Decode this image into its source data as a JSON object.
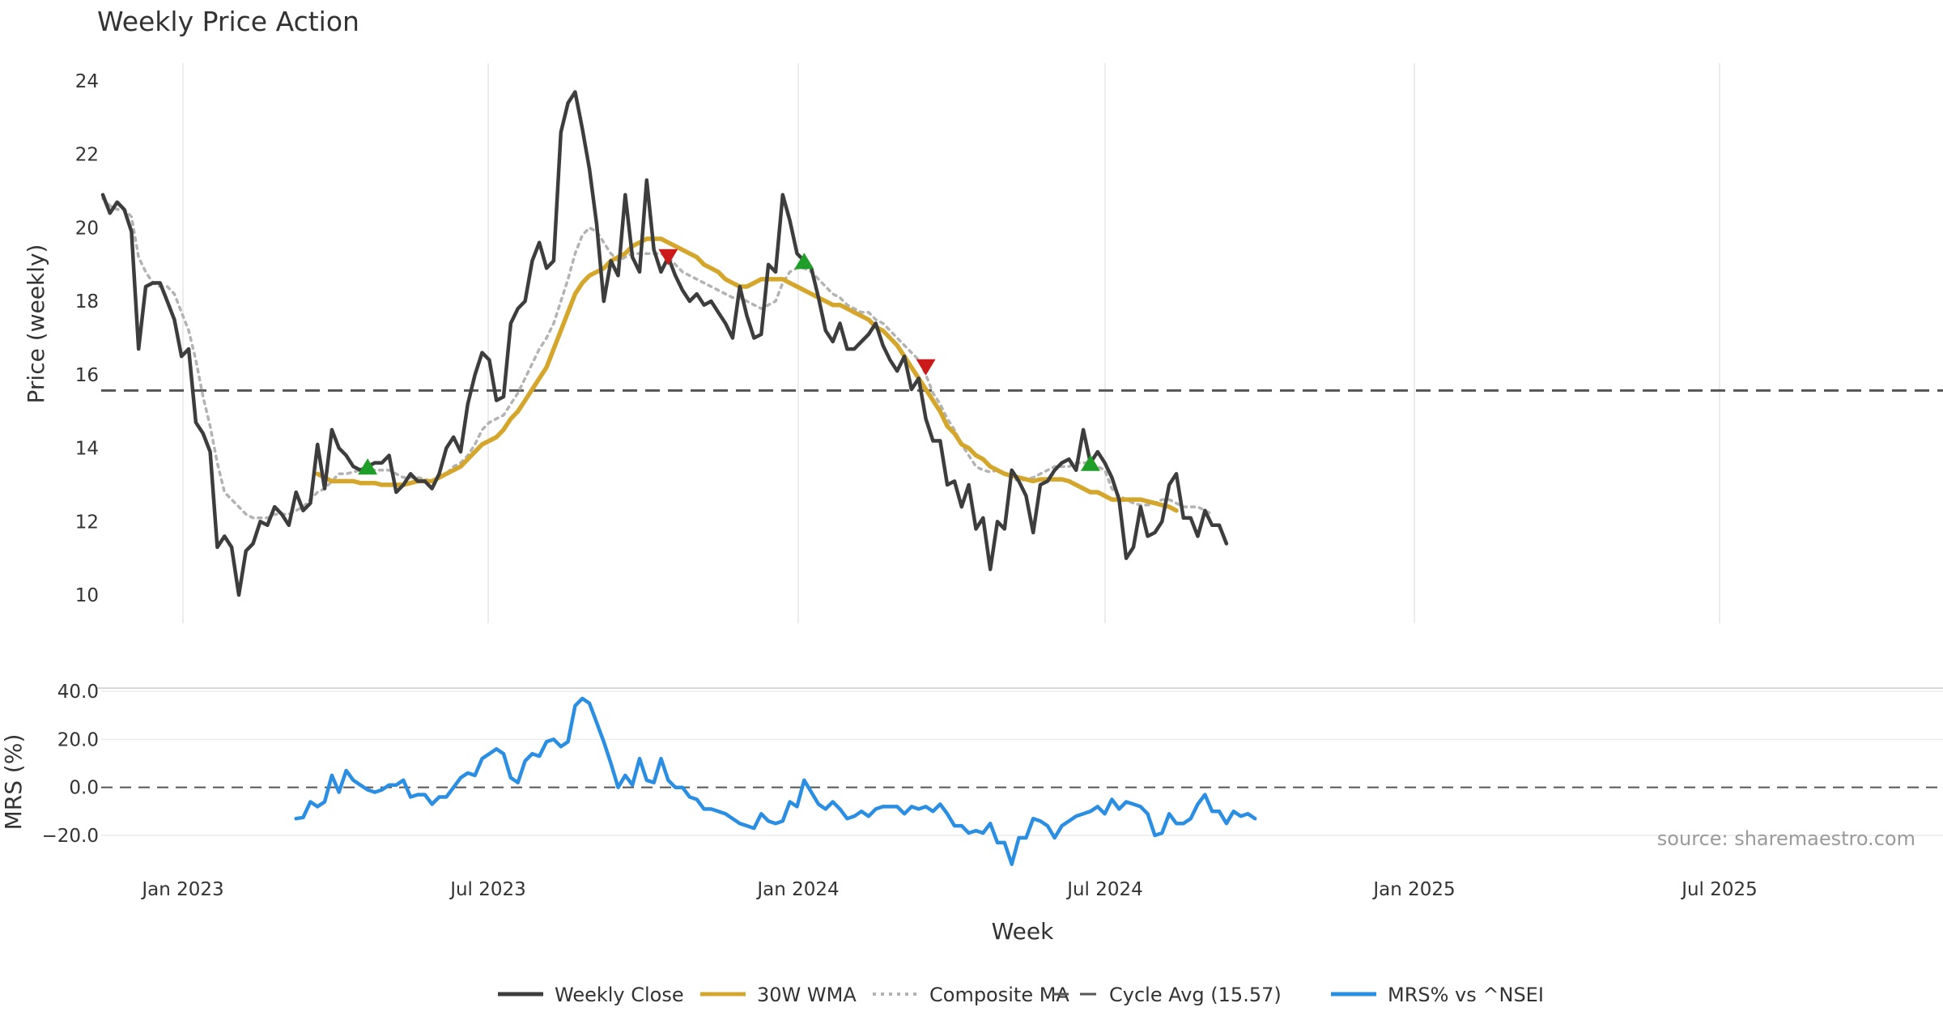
{
  "chart_data": {
    "type": "line",
    "title": "Weekly Price Action",
    "xlabel": "Week",
    "x_ticks": [
      "Jan 2023",
      "Jul 2023",
      "Jan 2024",
      "Jul 2024",
      "Jan 2025",
      "Jul 2025"
    ],
    "x_start": "2022-10-31",
    "price_panel": {
      "ylabel": "Price (weekly)",
      "ylim": [
        9.3,
        24.5
      ],
      "yticks": [
        "10",
        "12",
        "14",
        "16",
        "18",
        "20",
        "22",
        "24"
      ],
      "cycle_avg": 15.57,
      "series": [
        {
          "name": "Weekly Close",
          "color": "#3d3d3d",
          "start_index": 0,
          "values": [
            20.9,
            20.4,
            20.7,
            20.5,
            19.9,
            16.7,
            18.4,
            18.5,
            18.5,
            18.0,
            17.5,
            16.5,
            16.7,
            14.7,
            14.4,
            13.9,
            11.3,
            11.6,
            11.3,
            10.0,
            11.2,
            11.4,
            12.0,
            11.9,
            12.4,
            12.2,
            11.9,
            12.8,
            12.3,
            12.5,
            14.1,
            12.9,
            14.5,
            14.0,
            13.8,
            13.5,
            13.4,
            13.5,
            13.6,
            13.6,
            13.8,
            12.8,
            13.0,
            13.3,
            13.1,
            13.1,
            12.9,
            13.3,
            14.0,
            14.3,
            13.9,
            15.2,
            16.0,
            16.6,
            16.4,
            15.3,
            15.4,
            17.4,
            17.8,
            18.0,
            19.1,
            19.6,
            18.9,
            19.1,
            22.6,
            23.4,
            23.7,
            22.7,
            21.6,
            20.1,
            18.0,
            19.1,
            18.7,
            20.9,
            19.2,
            18.8,
            21.3,
            19.4,
            18.8,
            19.2,
            18.7,
            18.3,
            18.0,
            18.2,
            17.9,
            18.0,
            17.7,
            17.4,
            17.0,
            18.4,
            17.6,
            17.0,
            17.1,
            19.0,
            18.8,
            20.9,
            20.2,
            19.3,
            19.1,
            18.9,
            18.1,
            17.2,
            16.9,
            17.4,
            16.7,
            16.7,
            16.9,
            17.1,
            17.4,
            16.8,
            16.4,
            16.1,
            16.5,
            15.6,
            15.9,
            14.8,
            14.2,
            14.2,
            13.0,
            13.1,
            12.4,
            13.0,
            11.8,
            12.1,
            10.7,
            12.0,
            11.8,
            13.4,
            13.1,
            12.7,
            11.7,
            13.0,
            13.1,
            13.4,
            13.6,
            13.7,
            13.4,
            14.5,
            13.6,
            13.9,
            13.6,
            13.2,
            12.6,
            11.0,
            11.3,
            12.4,
            11.6,
            11.7,
            12.0,
            13.0,
            13.3,
            12.1,
            12.1,
            11.6,
            12.3,
            11.9,
            11.9,
            11.4
          ]
        },
        {
          "name": "30W WMA",
          "color": "#d4a72c",
          "start_index": 30,
          "values": [
            13.3,
            13.2,
            13.1,
            13.1,
            13.1,
            13.1,
            13.05,
            13.05,
            13.05,
            13.0,
            13.0,
            13.0,
            13.0,
            13.05,
            13.1,
            13.1,
            13.1,
            13.2,
            13.3,
            13.4,
            13.5,
            13.7,
            13.9,
            14.1,
            14.2,
            14.3,
            14.5,
            14.8,
            15.0,
            15.3,
            15.6,
            15.9,
            16.2,
            16.7,
            17.2,
            17.7,
            18.2,
            18.5,
            18.7,
            18.8,
            18.9,
            19.1,
            19.2,
            19.3,
            19.5,
            19.6,
            19.7,
            19.7,
            19.7,
            19.6,
            19.5,
            19.4,
            19.3,
            19.2,
            19.0,
            18.9,
            18.8,
            18.6,
            18.5,
            18.4,
            18.4,
            18.5,
            18.6,
            18.6,
            18.6,
            18.6,
            18.5,
            18.4,
            18.3,
            18.2,
            18.1,
            18.0,
            17.9,
            17.9,
            17.8,
            17.7,
            17.6,
            17.5,
            17.3,
            17.2,
            17.0,
            16.8,
            16.5,
            16.2,
            15.9,
            15.6,
            15.3,
            15.0,
            14.6,
            14.4,
            14.1,
            14.0,
            13.8,
            13.7,
            13.5,
            13.4,
            13.3,
            13.25,
            13.2,
            13.15,
            13.1,
            13.15,
            13.15,
            13.15,
            13.15,
            13.1,
            13.0,
            12.9,
            12.8,
            12.8,
            12.7,
            12.6,
            12.6,
            12.6,
            12.6,
            12.6,
            12.55,
            12.5,
            12.45,
            12.4,
            12.3
          ]
        },
        {
          "name": "Composite MA",
          "color": "#b3b3b3",
          "start_index": 0,
          "values": [
            20.8,
            20.6,
            20.5,
            20.5,
            20.3,
            19.2,
            18.8,
            18.5,
            18.4,
            18.4,
            18.2,
            17.7,
            17.2,
            16.4,
            15.4,
            14.6,
            13.6,
            12.8,
            12.6,
            12.4,
            12.2,
            12.1,
            12.1,
            12.1,
            12.2,
            12.2,
            12.2,
            12.3,
            12.4,
            12.6,
            12.8,
            12.9,
            13.1,
            13.3,
            13.3,
            13.35,
            13.4,
            13.4,
            13.4,
            13.4,
            13.4,
            13.3,
            13.2,
            13.2,
            13.2,
            13.15,
            13.1,
            13.2,
            13.3,
            13.5,
            13.6,
            13.8,
            14.1,
            14.5,
            14.7,
            14.8,
            14.9,
            15.2,
            15.5,
            15.9,
            16.3,
            16.7,
            17.0,
            17.4,
            18.0,
            18.6,
            19.3,
            19.8,
            20.0,
            19.9,
            19.6,
            19.3,
            19.1,
            19.2,
            19.3,
            19.3,
            19.3,
            19.3,
            19.3,
            19.2,
            19.0,
            18.8,
            18.7,
            18.6,
            18.5,
            18.4,
            18.3,
            18.2,
            18.1,
            18.1,
            18.0,
            17.9,
            17.8,
            17.9,
            18.0,
            18.5,
            18.8,
            18.9,
            18.9,
            18.8,
            18.6,
            18.4,
            18.2,
            18.1,
            17.9,
            17.8,
            17.7,
            17.7,
            17.5,
            17.4,
            17.2,
            17.0,
            16.8,
            16.6,
            16.4,
            16.0,
            15.5,
            15.2,
            14.8,
            14.5,
            14.1,
            13.8,
            13.5,
            13.4,
            13.35,
            13.4,
            13.3,
            13.2,
            13.1,
            13.15,
            13.2,
            13.3,
            13.4,
            13.5,
            13.5,
            13.5,
            13.6,
            13.6,
            13.6,
            13.5,
            13.4,
            12.9,
            12.7,
            12.6,
            12.5,
            12.45,
            12.45,
            12.5,
            12.6,
            12.6,
            12.5,
            12.4,
            12.4,
            12.4,
            12.3,
            12.2
          ]
        }
      ],
      "signals": [
        {
          "type": "sell",
          "index": 79,
          "value": 19.2,
          "color": "#cc1a1a"
        },
        {
          "type": "buy",
          "index": 98,
          "value": 19.1,
          "color": "#1f9e2a"
        },
        {
          "type": "sell",
          "index": 115,
          "value": 16.2,
          "color": "#cc1a1a"
        },
        {
          "type": "buy",
          "index": 37,
          "value": 13.5,
          "color": "#1f9e2a"
        },
        {
          "type": "buy",
          "index": 138,
          "value": 13.6,
          "color": "#1f9e2a"
        }
      ]
    },
    "mrs_panel": {
      "ylabel": "MRS (%)",
      "ylim": [
        -32,
        45
      ],
      "yticks": [
        "40.0",
        "20.0",
        "0.0",
        "−20.0"
      ],
      "series": [
        {
          "name": "MRS% vs ^NSEI",
          "color": "#2a8ee3",
          "start_index": 27,
          "values": [
            -13,
            -12.5,
            -6,
            -8,
            -6,
            5,
            -2,
            7,
            3,
            1,
            -1,
            -2,
            -1,
            1,
            1,
            3,
            -4,
            -3,
            -3,
            -7,
            -4,
            -4,
            0,
            4,
            6,
            5,
            12,
            14,
            16,
            14,
            4,
            2,
            11,
            14,
            13,
            19,
            20,
            17,
            19,
            34,
            37,
            35,
            27,
            19,
            10,
            0,
            5,
            1,
            12,
            3,
            2,
            12,
            3,
            0,
            0,
            -4,
            -5,
            -9,
            -9,
            -10,
            -11,
            -13,
            -15,
            -16,
            -17,
            -11,
            -14,
            -15,
            -14,
            -6,
            -8,
            3,
            -2,
            -7,
            -9,
            -6,
            -9,
            -13,
            -12,
            -10,
            -12,
            -9,
            -8,
            -8,
            -8,
            -11,
            -8,
            -9,
            -8,
            -10,
            -7,
            -11,
            -16,
            -16,
            -19,
            -18,
            -19,
            -15,
            -23,
            -23,
            -32,
            -21,
            -21,
            -13,
            -14,
            -16,
            -21,
            -16,
            -14,
            -12,
            -11,
            -10,
            -8,
            -11,
            -5,
            -9,
            -6,
            -7,
            -8,
            -11,
            -20,
            -19,
            -11,
            -15,
            -15,
            -13,
            -7,
            -3,
            -10,
            -10,
            -15,
            -10,
            -12,
            -11,
            -13
          ]
        }
      ]
    },
    "annotation": "source: sharemaestro.com",
    "legend": [
      {
        "label": "Weekly Close",
        "color": "#3d3d3d",
        "style": "solid"
      },
      {
        "label": "30W WMA",
        "color": "#d4a72c",
        "style": "solid"
      },
      {
        "label": "Composite MA",
        "color": "#b3b3b3",
        "style": "dotted"
      },
      {
        "label": "Cycle Avg (15.57)",
        "color": "#555555",
        "style": "dashed"
      },
      {
        "label": "MRS% vs ^NSEI",
        "color": "#2a8ee3",
        "style": "solid"
      }
    ]
  }
}
